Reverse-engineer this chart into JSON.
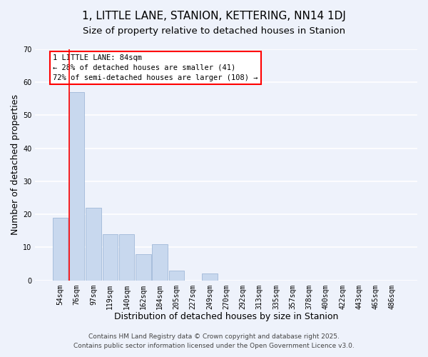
{
  "title": "1, LITTLE LANE, STANION, KETTERING, NN14 1DJ",
  "subtitle": "Size of property relative to detached houses in Stanion",
  "xlabel": "Distribution of detached houses by size in Stanion",
  "ylabel": "Number of detached properties",
  "categories": [
    "54sqm",
    "76sqm",
    "97sqm",
    "119sqm",
    "140sqm",
    "162sqm",
    "184sqm",
    "205sqm",
    "227sqm",
    "249sqm",
    "270sqm",
    "292sqm",
    "313sqm",
    "335sqm",
    "357sqm",
    "378sqm",
    "400sqm",
    "422sqm",
    "443sqm",
    "465sqm",
    "486sqm"
  ],
  "values": [
    19,
    57,
    22,
    14,
    14,
    8,
    11,
    3,
    0,
    2,
    0,
    0,
    0,
    0,
    0,
    0,
    0,
    0,
    0,
    0,
    0
  ],
  "bar_color": "#c8d8ee",
  "bar_edge_color": "#a0b8d8",
  "ylim": [
    0,
    70
  ],
  "yticks": [
    0,
    10,
    20,
    30,
    40,
    50,
    60,
    70
  ],
  "red_line_x": 1.0,
  "annotation_title": "1 LITTLE LANE: 84sqm",
  "annotation_line1": "← 28% of detached houses are smaller (41)",
  "annotation_line2": "72% of semi-detached houses are larger (108) →",
  "footer1": "Contains HM Land Registry data © Crown copyright and database right 2025.",
  "footer2": "Contains public sector information licensed under the Open Government Licence v3.0.",
  "background_color": "#eef2fb",
  "plot_bg_color": "#eef2fb",
  "grid_color": "#ffffff",
  "title_fontsize": 11,
  "subtitle_fontsize": 9.5,
  "axis_label_fontsize": 9,
  "tick_fontsize": 7,
  "annotation_fontsize": 7.5,
  "footer_fontsize": 6.5
}
